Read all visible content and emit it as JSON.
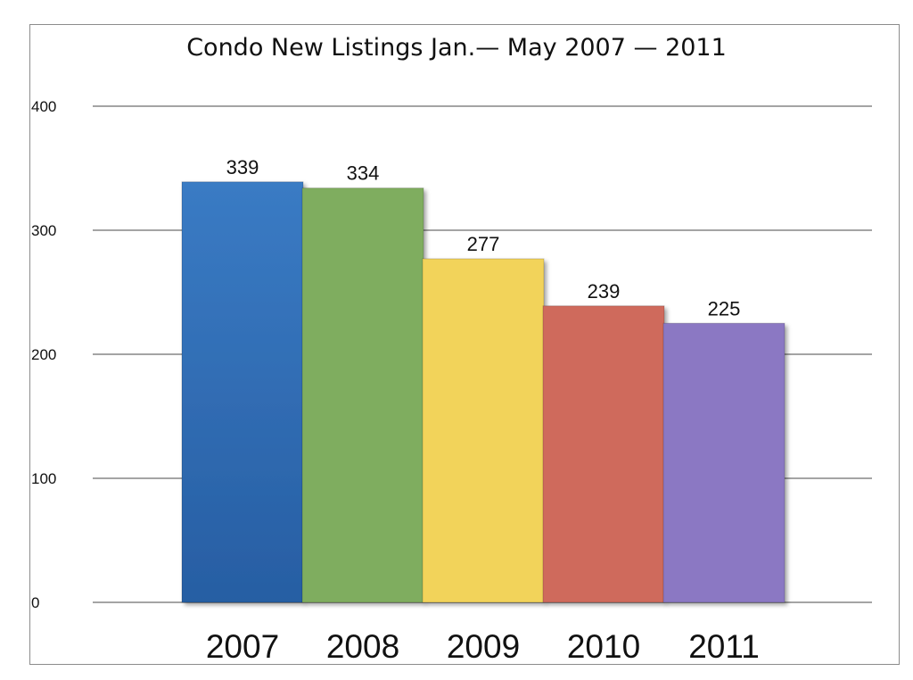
{
  "chart_data": {
    "type": "bar",
    "title": "Condo New Listings Jan.— May 2007 — 2011",
    "xlabel": "",
    "ylabel": "",
    "categories": [
      "2007",
      "2008",
      "2009",
      "2010",
      "2011"
    ],
    "values": [
      339,
      334,
      277,
      239,
      225
    ],
    "data_labels": [
      "339",
      "334",
      "277",
      "239",
      "225"
    ],
    "colors": [
      "#2f6cb3",
      "#7fad5f",
      "#f2d35a",
      "#cf6b5c",
      "#8b78c3"
    ],
    "ylim": [
      0,
      400
    ],
    "yticks": [
      0,
      100,
      200,
      300,
      400
    ],
    "grid": true,
    "legend": "none"
  }
}
